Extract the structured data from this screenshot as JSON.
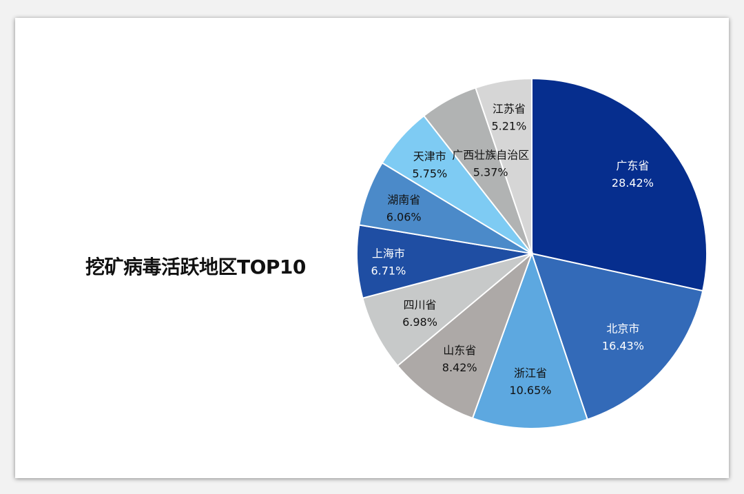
{
  "chart_data": {
    "type": "pie",
    "title": "挖矿病毒活跃地区TOP10",
    "slices": [
      {
        "label": "广东省",
        "value": 28.42,
        "display": "28.42%",
        "color": "#062e8e",
        "text_color": "#ffffff"
      },
      {
        "label": "北京市",
        "value": 16.43,
        "display": "16.43%",
        "color": "#336ab8",
        "text_color": "#ffffff"
      },
      {
        "label": "浙江省",
        "value": 10.65,
        "display": "10.65%",
        "color": "#5da8e0",
        "text_color": "#111111"
      },
      {
        "label": "山东省",
        "value": 8.42,
        "display": "8.42%",
        "color": "#ada9a7",
        "text_color": "#111111"
      },
      {
        "label": "四川省",
        "value": 6.98,
        "display": "6.98%",
        "color": "#c7c9c9",
        "text_color": "#111111"
      },
      {
        "label": "上海市",
        "value": 6.71,
        "display": "6.71%",
        "color": "#1f4ea3",
        "text_color": "#ffffff"
      },
      {
        "label": "湖南省",
        "value": 6.06,
        "display": "6.06%",
        "color": "#4b8ac9",
        "text_color": "#111111"
      },
      {
        "label": "天津市",
        "value": 5.75,
        "display": "5.75%",
        "color": "#7ecbf3",
        "text_color": "#111111"
      },
      {
        "label": "广西壮族自治区",
        "value": 5.37,
        "display": "5.37%",
        "color": "#b1b3b3",
        "text_color": "#111111"
      },
      {
        "label": "江苏省",
        "value": 5.21,
        "display": "5.21%",
        "color": "#d6d6d6",
        "text_color": "#111111"
      }
    ]
  }
}
